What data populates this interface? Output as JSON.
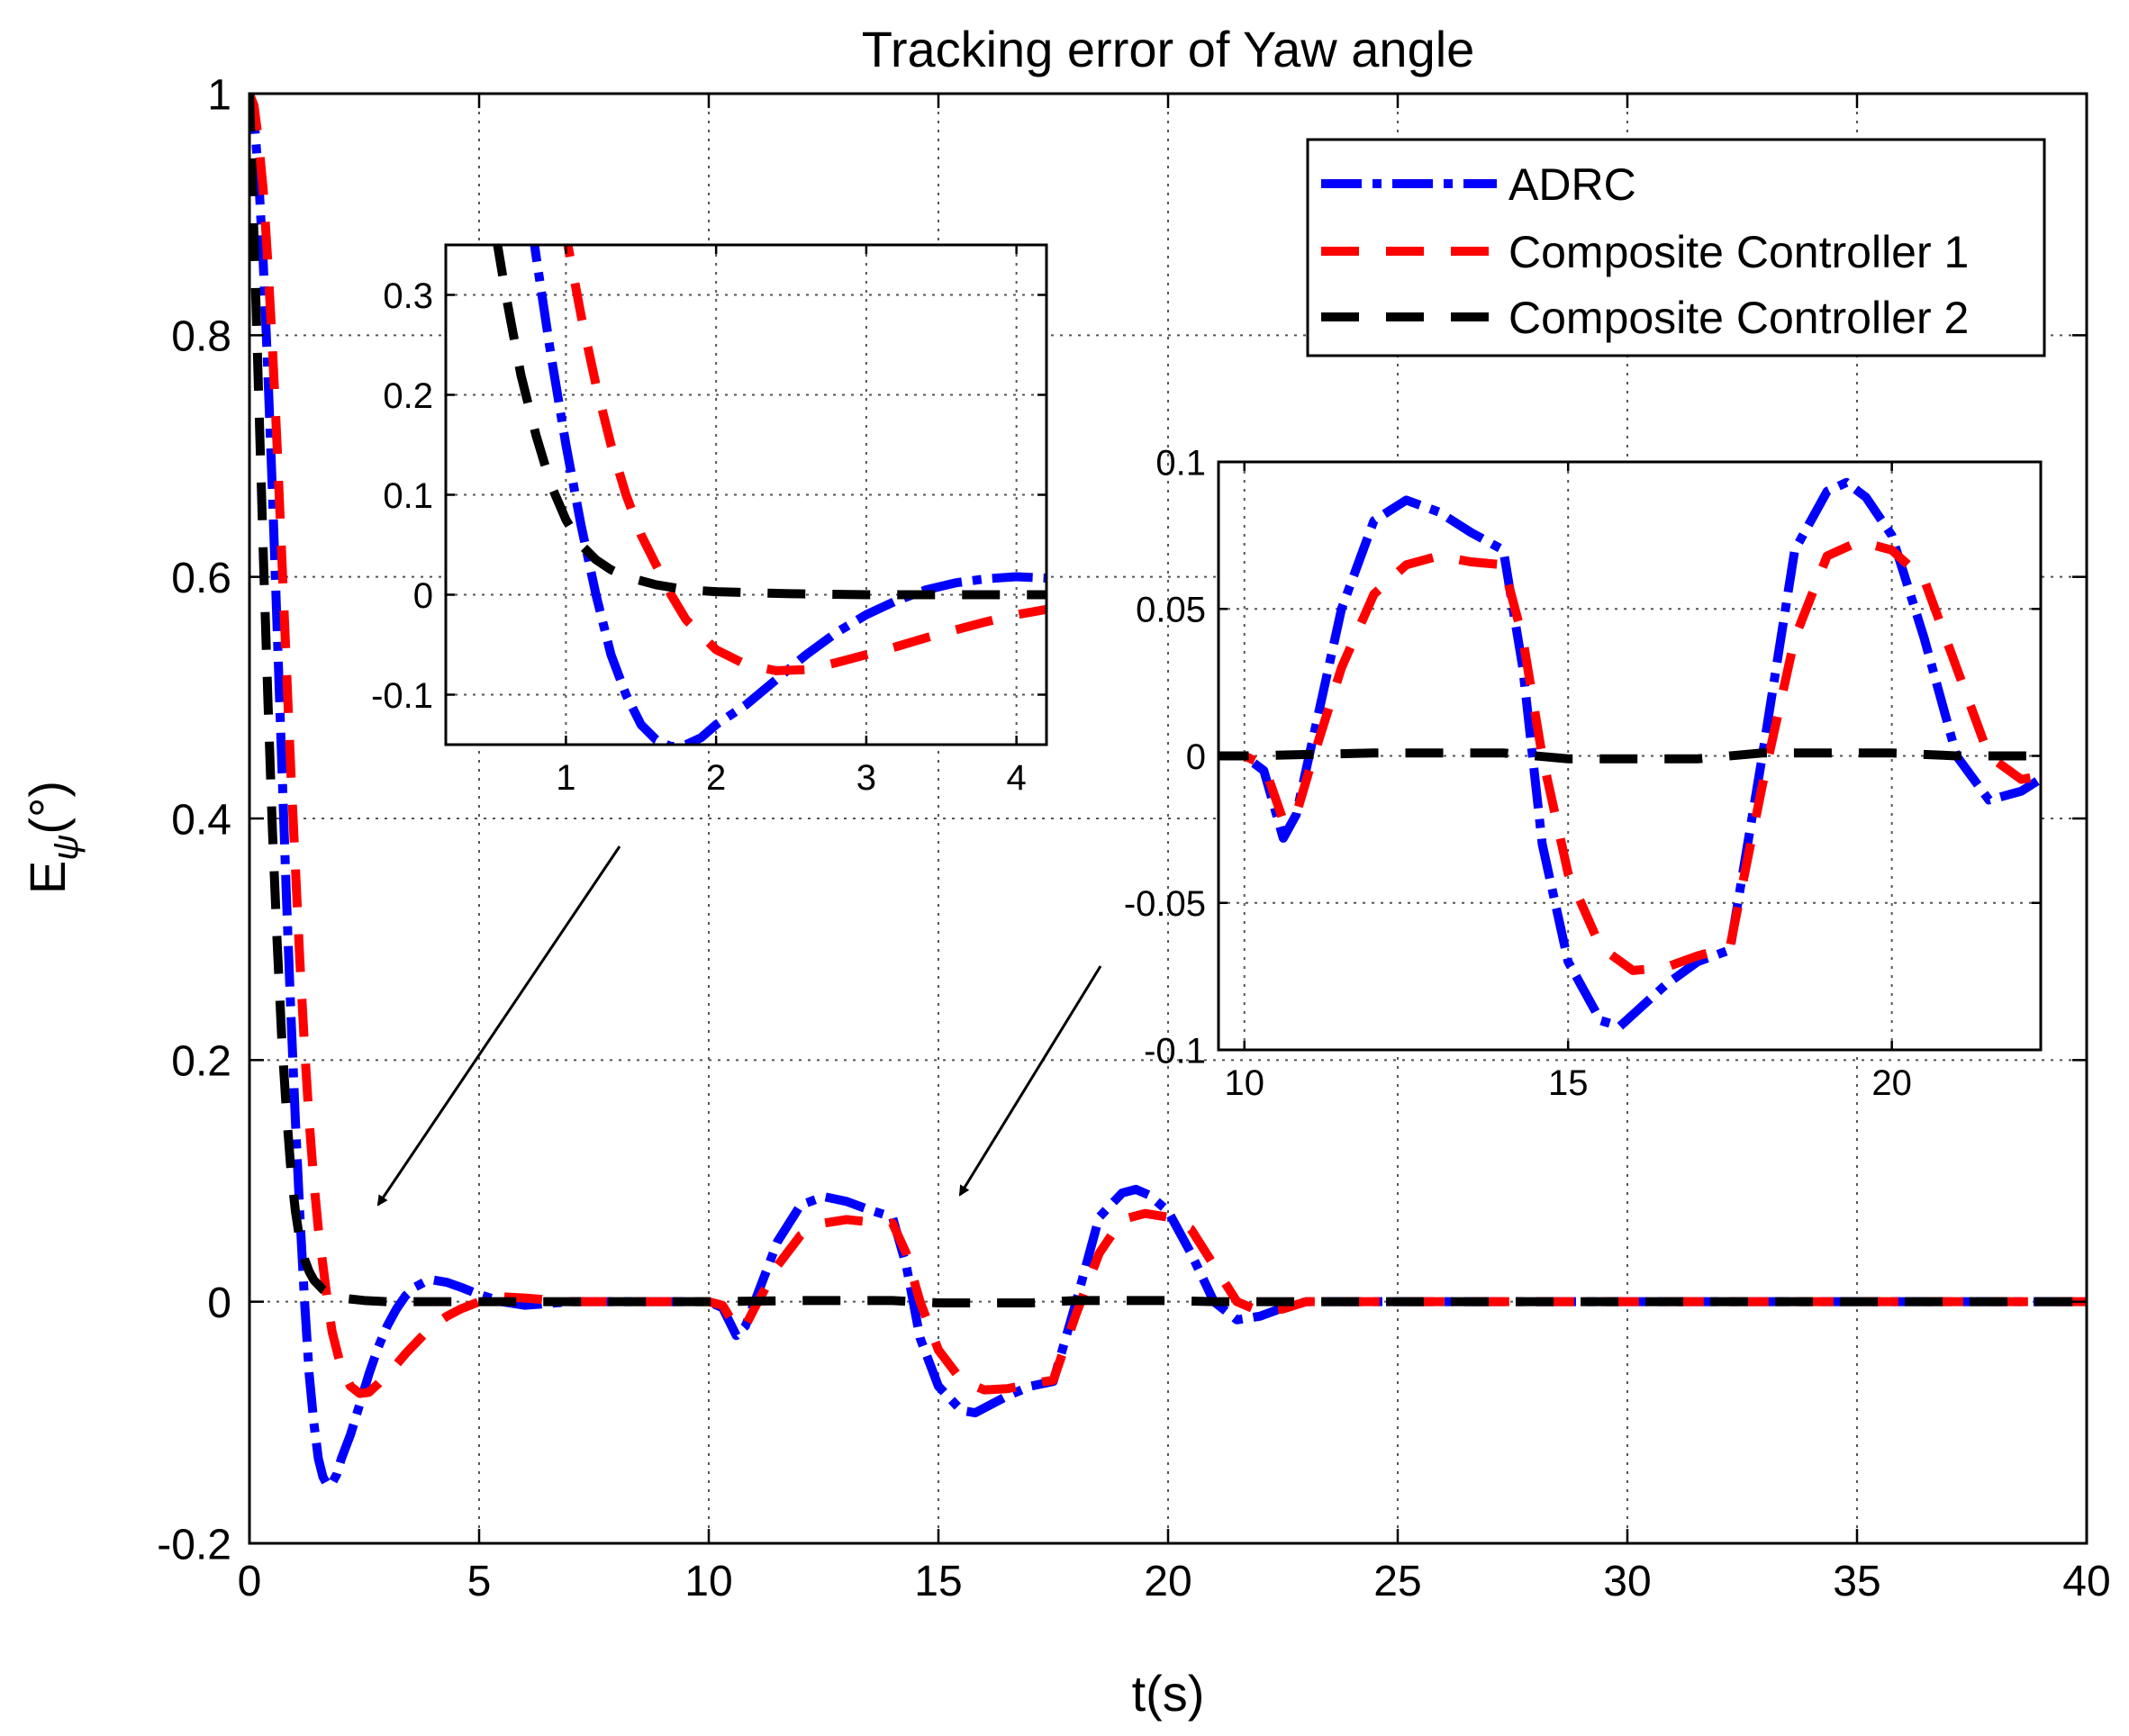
{
  "chart_data": [
    {
      "id": "main",
      "type": "line",
      "title": "Tracking error of Yaw angle",
      "xlabel": "t(s)",
      "ylabel_main": "E",
      "ylabel_sub": "ψ",
      "ylabel_unit": "(°)",
      "xlim": [
        0,
        40
      ],
      "ylim": [
        -0.2,
        1.0
      ],
      "xticks": [
        0,
        5,
        10,
        15,
        20,
        25,
        30,
        35,
        40
      ],
      "xtick_labels": [
        "0",
        "5",
        "10",
        "15",
        "20",
        "25",
        "30",
        "35",
        "40"
      ],
      "yticks": [
        -0.2,
        0,
        0.2,
        0.4,
        0.6,
        0.8,
        1.0
      ],
      "ytick_labels": [
        "-0.2",
        "0",
        "0.2",
        "0.4",
        "0.6",
        "0.8",
        "1"
      ],
      "grid": true,
      "legend_position": "top-right",
      "series": [
        {
          "name": "ADRC",
          "color": "#0000ff",
          "style": "dashdot",
          "x": [
            0,
            0.1,
            0.2,
            0.3,
            0.4,
            0.5,
            0.6,
            0.7,
            0.8,
            0.9,
            1.0,
            1.1,
            1.2,
            1.3,
            1.4,
            1.5,
            1.6,
            1.7,
            1.8,
            1.9,
            2.0,
            2.2,
            2.4,
            2.6,
            2.8,
            3.0,
            3.2,
            3.4,
            3.6,
            3.8,
            4.0,
            4.3,
            4.6,
            5.0,
            5.5,
            6.0,
            7.0,
            8.0,
            9.0,
            10.0,
            10.3,
            10.6,
            10.8,
            11.0,
            11.5,
            12.0,
            12.5,
            13.0,
            13.5,
            14.0,
            14.3,
            14.6,
            15.0,
            15.5,
            15.8,
            16.0,
            16.5,
            17.0,
            17.5,
            18.0,
            18.5,
            19.0,
            19.3,
            19.6,
            20.0,
            20.5,
            21.0,
            21.5,
            22.0,
            22.5,
            23.0,
            24.0,
            26.0,
            30.0,
            35.0,
            40.0
          ],
          "y": [
            1.0,
            0.98,
            0.93,
            0.86,
            0.77,
            0.67,
            0.56,
            0.45,
            0.34,
            0.24,
            0.15,
            0.07,
            0.0,
            -0.06,
            -0.1,
            -0.13,
            -0.145,
            -0.152,
            -0.15,
            -0.143,
            -0.13,
            -0.11,
            -0.085,
            -0.06,
            -0.038,
            -0.02,
            -0.006,
            0.005,
            0.012,
            0.016,
            0.018,
            0.016,
            0.012,
            0.006,
            0.0,
            -0.003,
            0.0,
            0.0,
            0.0,
            0.0,
            -0.005,
            -0.028,
            -0.02,
            0.0,
            0.05,
            0.08,
            0.087,
            0.083,
            0.076,
            0.07,
            0.03,
            -0.03,
            -0.07,
            -0.09,
            -0.092,
            -0.088,
            -0.078,
            -0.07,
            -0.066,
            0.0,
            0.07,
            0.09,
            0.093,
            0.088,
            0.075,
            0.04,
            0.0,
            -0.015,
            -0.012,
            -0.005,
            0.0,
            0.0,
            0.0,
            0.0,
            0.0,
            0.0
          ]
        },
        {
          "name": "Composite Controller 1",
          "color": "#ff0000",
          "style": "dashed",
          "x": [
            0,
            0.1,
            0.2,
            0.3,
            0.4,
            0.5,
            0.6,
            0.7,
            0.8,
            0.9,
            1.0,
            1.1,
            1.2,
            1.3,
            1.4,
            1.5,
            1.6,
            1.7,
            1.8,
            2.0,
            2.2,
            2.4,
            2.6,
            2.8,
            3.0,
            3.2,
            3.4,
            3.6,
            3.8,
            4.0,
            4.3,
            4.6,
            5.0,
            5.5,
            6.0,
            7.0,
            8.0,
            9.0,
            10.0,
            10.3,
            10.6,
            10.8,
            11.0,
            11.5,
            12.0,
            12.5,
            13.0,
            13.5,
            14.0,
            14.3,
            14.6,
            15.0,
            15.5,
            16.0,
            16.5,
            17.0,
            17.5,
            18.0,
            18.5,
            19.0,
            19.5,
            20.0,
            20.5,
            21.0,
            21.5,
            22.0,
            22.5,
            23.0,
            24.0,
            26.0,
            30.0,
            35.0,
            40.0
          ],
          "y": [
            1.0,
            0.99,
            0.96,
            0.92,
            0.86,
            0.79,
            0.71,
            0.62,
            0.53,
            0.44,
            0.36,
            0.28,
            0.21,
            0.15,
            0.1,
            0.06,
            0.03,
            0.0,
            -0.025,
            -0.055,
            -0.07,
            -0.076,
            -0.075,
            -0.068,
            -0.06,
            -0.052,
            -0.043,
            -0.035,
            -0.027,
            -0.02,
            -0.012,
            -0.006,
            0.0,
            0.004,
            0.003,
            0.0,
            0.0,
            0.0,
            0.0,
            -0.003,
            -0.022,
            -0.02,
            -0.005,
            0.03,
            0.055,
            0.065,
            0.068,
            0.066,
            0.065,
            0.04,
            0.0,
            -0.04,
            -0.065,
            -0.073,
            -0.072,
            -0.068,
            -0.065,
            -0.01,
            0.04,
            0.068,
            0.073,
            0.07,
            0.06,
            0.03,
            0.0,
            -0.008,
            -0.006,
            0.0,
            0.0,
            0.0,
            0.0,
            0.0,
            0.0
          ]
        },
        {
          "name": "Composite Controller 2",
          "color": "#000000",
          "style": "dashed",
          "x": [
            0,
            0.1,
            0.2,
            0.3,
            0.4,
            0.5,
            0.6,
            0.7,
            0.8,
            0.9,
            1.0,
            1.1,
            1.2,
            1.3,
            1.4,
            1.6,
            1.8,
            2.0,
            2.5,
            3.0,
            4.0,
            6.0,
            10.0,
            12.0,
            13.0,
            14.0,
            15.0,
            16.0,
            17.0,
            18.0,
            19.0,
            20.0,
            21.0,
            22.0,
            24.0,
            30.0,
            40.0
          ],
          "y": [
            1.0,
            0.88,
            0.75,
            0.62,
            0.5,
            0.39,
            0.3,
            0.22,
            0.16,
            0.11,
            0.075,
            0.05,
            0.035,
            0.025,
            0.018,
            0.01,
            0.005,
            0.003,
            0.001,
            0.0,
            0.0,
            0.0,
            0.0,
            0.001,
            0.001,
            0.001,
            -0.001,
            -0.001,
            -0.001,
            0.001,
            0.001,
            0.001,
            0.0,
            0.0,
            0.0,
            0.0,
            0.0
          ]
        }
      ]
    },
    {
      "id": "inset1",
      "type": "line",
      "xlim": [
        0.2,
        4.2
      ],
      "ylim": [
        -0.15,
        0.35
      ],
      "xticks": [
        1,
        2,
        3,
        4
      ],
      "xtick_labels": [
        "1",
        "2",
        "3",
        "4"
      ],
      "yticks": [
        -0.1,
        0,
        0.1,
        0.2,
        0.3
      ],
      "ytick_labels": [
        "-0.1",
        "0",
        "0.1",
        "0.2",
        "0.3"
      ],
      "grid": true,
      "series_ref": "main"
    },
    {
      "id": "inset2",
      "type": "line",
      "xlim": [
        9.6,
        22.3
      ],
      "ylim": [
        -0.1,
        0.1
      ],
      "xticks": [
        10,
        15,
        20
      ],
      "xtick_labels": [
        "10",
        "15",
        "20"
      ],
      "yticks": [
        -0.1,
        -0.05,
        0,
        0.05,
        0.1
      ],
      "ytick_labels": [
        "-0.1",
        "-0.05",
        "0",
        "0.05",
        "0.1"
      ],
      "grid": true,
      "series_ref": "main"
    }
  ]
}
